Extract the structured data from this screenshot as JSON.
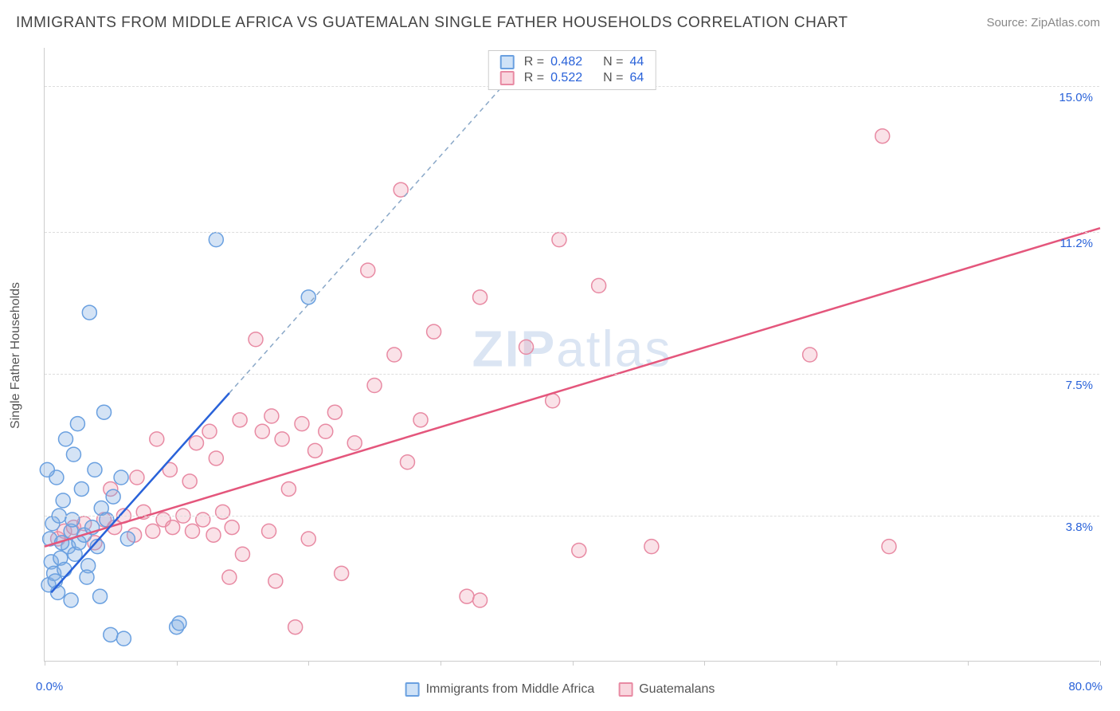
{
  "title": "IMMIGRANTS FROM MIDDLE AFRICA VS GUATEMALAN SINGLE FATHER HOUSEHOLDS CORRELATION CHART",
  "source_label": "Source: ZipAtlas.com",
  "axis": {
    "y_title": "Single Father Households",
    "xlim": [
      0,
      80
    ],
    "ylim": [
      0,
      16
    ],
    "x_ticks": [
      0,
      10,
      20,
      30,
      40,
      50,
      60,
      70,
      80
    ],
    "y_gridlines": [
      3.8,
      7.5,
      11.2,
      15.0
    ],
    "y_labels": [
      "3.8%",
      "7.5%",
      "11.2%",
      "15.0%"
    ],
    "x_min_label": "0.0%",
    "x_max_label": "80.0%"
  },
  "watermark": {
    "part1": "ZIP",
    "part2": "atlas"
  },
  "stats": [
    {
      "r_label": "R =",
      "r": "0.482",
      "n_label": "N =",
      "n": "44",
      "swatch_fill": "#cfe2f7",
      "swatch_border": "#6aa0e0"
    },
    {
      "r_label": "R =",
      "r": "0.522",
      "n_label": "N =",
      "n": "64",
      "swatch_fill": "#f9d6de",
      "swatch_border": "#e88aa3"
    }
  ],
  "legend": [
    {
      "label": "Immigrants from Middle Africa",
      "fill": "#cfe2f7",
      "border": "#6aa0e0"
    },
    {
      "label": "Guatemalans",
      "fill": "#f9d6de",
      "border": "#e88aa3"
    }
  ],
  "series_blue": {
    "color_fill": "rgba(132,175,225,0.35)",
    "color_stroke": "#6aa0e0",
    "trend_color": "#2962d9",
    "trend_solid": {
      "x1": 0.5,
      "y1": 1.8,
      "x2": 14,
      "y2": 7.0
    },
    "trend_dash": {
      "x1": 14,
      "y1": 7.0,
      "x2": 36,
      "y2": 15.5
    },
    "marker_radius": 9,
    "points": [
      [
        0.3,
        2.0
      ],
      [
        0.5,
        2.6
      ],
      [
        0.7,
        2.3
      ],
      [
        0.4,
        3.2
      ],
      [
        1.2,
        2.7
      ],
      [
        1.5,
        2.4
      ],
      [
        0.8,
        2.1
      ],
      [
        1.8,
        3.0
      ],
      [
        2.0,
        3.4
      ],
      [
        2.3,
        2.8
      ],
      [
        0.6,
        3.6
      ],
      [
        2.6,
        3.1
      ],
      [
        1.1,
        3.8
      ],
      [
        3.0,
        3.3
      ],
      [
        3.3,
        2.5
      ],
      [
        3.6,
        3.5
      ],
      [
        1.4,
        4.2
      ],
      [
        2.8,
        4.5
      ],
      [
        0.9,
        4.8
      ],
      [
        4.0,
        3.0
      ],
      [
        4.3,
        4.0
      ],
      [
        3.8,
        5.0
      ],
      [
        2.2,
        5.4
      ],
      [
        4.7,
        3.7
      ],
      [
        1.6,
        5.8
      ],
      [
        5.2,
        4.3
      ],
      [
        2.5,
        6.2
      ],
      [
        5.8,
        4.8
      ],
      [
        6.3,
        3.2
      ],
      [
        4.5,
        6.5
      ],
      [
        3.2,
        2.2
      ],
      [
        1.0,
        1.8
      ],
      [
        2.0,
        1.6
      ],
      [
        4.2,
        1.7
      ],
      [
        5.0,
        0.7
      ],
      [
        6.0,
        0.6
      ],
      [
        10.0,
        0.9
      ],
      [
        10.2,
        1.0
      ],
      [
        3.4,
        9.1
      ],
      [
        13.0,
        11.0
      ],
      [
        20.0,
        9.5
      ],
      [
        0.2,
        5.0
      ],
      [
        2.1,
        3.7
      ],
      [
        1.3,
        3.1
      ]
    ]
  },
  "series_pink": {
    "color_fill": "rgba(240,160,180,0.30)",
    "color_stroke": "#e88aa3",
    "trend_color": "#e4567c",
    "trend_solid": {
      "x1": 0,
      "y1": 3.0,
      "x2": 80,
      "y2": 11.3
    },
    "marker_radius": 9,
    "points": [
      [
        1.0,
        3.2
      ],
      [
        1.5,
        3.4
      ],
      [
        2.2,
        3.5
      ],
      [
        3.0,
        3.6
      ],
      [
        3.8,
        3.1
      ],
      [
        4.5,
        3.7
      ],
      [
        5.3,
        3.5
      ],
      [
        6.0,
        3.8
      ],
      [
        6.8,
        3.3
      ],
      [
        7.5,
        3.9
      ],
      [
        8.2,
        3.4
      ],
      [
        9.0,
        3.7
      ],
      [
        9.7,
        3.5
      ],
      [
        10.5,
        3.8
      ],
      [
        11.2,
        3.4
      ],
      [
        12.0,
        3.7
      ],
      [
        12.8,
        3.3
      ],
      [
        13.5,
        3.9
      ],
      [
        14.2,
        3.5
      ],
      [
        15.0,
        2.8
      ],
      [
        5.0,
        4.5
      ],
      [
        7.0,
        4.8
      ],
      [
        9.5,
        5.0
      ],
      [
        11.0,
        4.7
      ],
      [
        13.0,
        5.3
      ],
      [
        8.5,
        5.8
      ],
      [
        12.5,
        6.0
      ],
      [
        14.8,
        6.3
      ],
      [
        16.5,
        6.0
      ],
      [
        17.2,
        6.4
      ],
      [
        18.0,
        5.8
      ],
      [
        19.5,
        6.2
      ],
      [
        20.5,
        5.5
      ],
      [
        21.3,
        6.0
      ],
      [
        22.0,
        6.5
      ],
      [
        23.5,
        5.7
      ],
      [
        18.5,
        4.5
      ],
      [
        17.0,
        3.4
      ],
      [
        20.0,
        3.2
      ],
      [
        14.0,
        2.2
      ],
      [
        17.5,
        2.1
      ],
      [
        19.0,
        0.9
      ],
      [
        22.5,
        2.3
      ],
      [
        25.0,
        7.2
      ],
      [
        26.5,
        8.0
      ],
      [
        28.5,
        6.3
      ],
      [
        29.5,
        8.6
      ],
      [
        32.0,
        1.7
      ],
      [
        27.0,
        12.3
      ],
      [
        24.5,
        10.2
      ],
      [
        33.0,
        9.5
      ],
      [
        36.5,
        8.2
      ],
      [
        33.0,
        1.6
      ],
      [
        39.0,
        11.0
      ],
      [
        40.5,
        2.9
      ],
      [
        42.0,
        9.8
      ],
      [
        58.0,
        8.0
      ],
      [
        63.5,
        13.7
      ],
      [
        64.0,
        3.0
      ],
      [
        46.0,
        3.0
      ],
      [
        38.5,
        6.8
      ],
      [
        27.5,
        5.2
      ],
      [
        16.0,
        8.4
      ],
      [
        11.5,
        5.7
      ]
    ]
  }
}
